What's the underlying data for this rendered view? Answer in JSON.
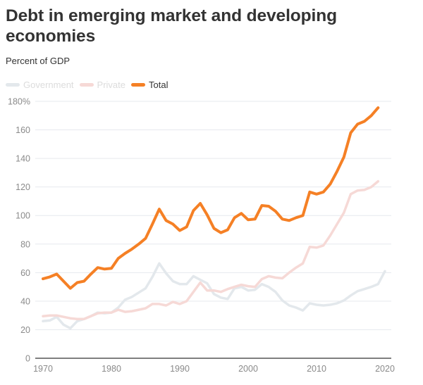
{
  "chart_data": {
    "type": "line",
    "title": "Debt in emerging market and developing economies",
    "subtitle": "Percent of GDP",
    "xlabel": "",
    "ylabel": "Percent of GDP",
    "xlim": [
      1970,
      2020
    ],
    "ylim": [
      0,
      180
    ],
    "grid": true,
    "legend_position": "top-left",
    "x_ticks": [
      1970,
      1980,
      1990,
      2000,
      2010,
      2020
    ],
    "y_ticks": [
      0,
      20,
      40,
      60,
      80,
      100,
      120,
      140,
      160,
      180
    ],
    "y_tick_labels": [
      "0",
      "20",
      "40",
      "60",
      "80",
      "100",
      "120",
      "140",
      "160",
      "180%"
    ],
    "series": [
      {
        "name": "Government",
        "color": "#e3e8ec",
        "highlighted": false,
        "x": [
          1970,
          1971,
          1972,
          1973,
          1974,
          1975,
          1976,
          1977,
          1978,
          1979,
          1980,
          1981,
          1982,
          1983,
          1984,
          1985,
          1986,
          1987,
          1988,
          1989,
          1990,
          1991,
          1992,
          1993,
          1994,
          1995,
          1996,
          1997,
          1998,
          1999,
          2000,
          2001,
          2002,
          2003,
          2004,
          2005,
          2006,
          2007,
          2008,
          2009,
          2010,
          2011,
          2012,
          2013,
          2014,
          2015,
          2016,
          2017,
          2018,
          2019,
          2020
        ],
        "values": [
          26,
          26.5,
          29,
          23.5,
          21,
          26,
          27.5,
          29.5,
          32,
          31.5,
          32,
          35.5,
          41,
          43,
          46,
          49,
          57,
          66.5,
          59.5,
          54,
          52,
          52,
          57.5,
          55,
          52.5,
          45,
          42.5,
          41.5,
          49,
          50,
          47.5,
          48,
          52,
          50,
          46.5,
          40.5,
          37,
          35.5,
          33.5,
          38.5,
          37.5,
          37,
          37.5,
          38.5,
          40.5,
          44,
          47,
          48.5,
          50,
          52,
          61
        ]
      },
      {
        "name": "Private",
        "color": "#f6d9d6",
        "highlighted": false,
        "x": [
          1970,
          1971,
          1972,
          1973,
          1974,
          1975,
          1976,
          1977,
          1978,
          1979,
          1980,
          1981,
          1982,
          1983,
          1984,
          1985,
          1986,
          1987,
          1988,
          1989,
          1990,
          1991,
          1992,
          1993,
          1994,
          1995,
          1996,
          1997,
          1998,
          1999,
          2000,
          2001,
          2002,
          2003,
          2004,
          2005,
          2006,
          2007,
          2008,
          2009,
          2010,
          2011,
          2012,
          2013,
          2014,
          2015,
          2016,
          2017,
          2018,
          2019
        ],
        "values": [
          29.5,
          30,
          30,
          29,
          28,
          27.5,
          27.5,
          29.5,
          31.5,
          32,
          32,
          34,
          32.5,
          33,
          34,
          35,
          38,
          38,
          37,
          39.5,
          38,
          40,
          46.5,
          53,
          47.5,
          47.5,
          46.5,
          48.5,
          50,
          51.5,
          50.5,
          50,
          55.5,
          57.5,
          56.5,
          56,
          60,
          63.5,
          66.5,
          78,
          77.5,
          79,
          86,
          94,
          102,
          115,
          117.5,
          118,
          120,
          124
        ]
      },
      {
        "name": "Total",
        "color": "#f58025",
        "highlighted": true,
        "x": [
          1970,
          1971,
          1972,
          1973,
          1974,
          1975,
          1976,
          1977,
          1978,
          1979,
          1980,
          1981,
          1982,
          1983,
          1984,
          1985,
          1986,
          1987,
          1988,
          1989,
          1990,
          1991,
          1992,
          1993,
          1994,
          1995,
          1996,
          1997,
          1998,
          1999,
          2000,
          2001,
          2002,
          2003,
          2004,
          2005,
          2006,
          2007,
          2008,
          2009,
          2010,
          2011,
          2012,
          2013,
          2014,
          2015,
          2016,
          2017,
          2018,
          2019
        ],
        "values": [
          55.7,
          57,
          59,
          54,
          49,
          53,
          54,
          59,
          63.5,
          62.5,
          63,
          70,
          73.5,
          76.5,
          80,
          84,
          94,
          104.5,
          96.5,
          94,
          89.5,
          92,
          103.5,
          108.5,
          100.5,
          91,
          88,
          90,
          98.5,
          101.5,
          97,
          97.5,
          107,
          106.5,
          103,
          97.5,
          96.5,
          98.5,
          100,
          116.5,
          115,
          116.5,
          122,
          131,
          141,
          158,
          164,
          166,
          170,
          175.5
        ]
      }
    ]
  },
  "legend": {
    "items": [
      {
        "label": "Government",
        "color": "#e3e8ec",
        "dimmed": true
      },
      {
        "label": "Private",
        "color": "#f6d9d6",
        "dimmed": true
      },
      {
        "label": "Total",
        "color": "#f58025",
        "dimmed": false
      }
    ]
  },
  "colors": {
    "title": "#333333",
    "grid": "#e6e9ee",
    "axis": "#555555",
    "tick_label": "#8a8a8a"
  }
}
